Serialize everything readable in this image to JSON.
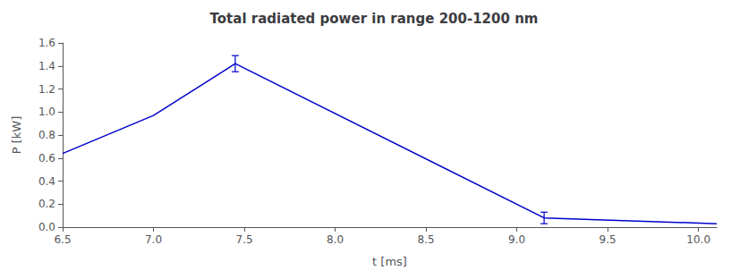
{
  "chart_data": {
    "type": "line",
    "title": "Total radiated power in range 200-1200 nm",
    "xlabel": "t [ms]",
    "ylabel": "P [kW]",
    "x": [
      6.5,
      7.0,
      7.45,
      9.15,
      10.1
    ],
    "y": [
      0.64,
      0.97,
      1.42,
      0.08,
      0.03
    ],
    "yerr": [
      0.0,
      0.0,
      0.07,
      0.05,
      0.0
    ],
    "xlim": [
      6.5,
      10.1
    ],
    "ylim": [
      0.0,
      1.6
    ],
    "xticks": [
      6.5,
      {
        "value": 7.0,
        "label": "7.0"
      },
      7.5,
      {
        "value": 8.0,
        "label": "8.0"
      },
      8.5,
      {
        "value": 9.0,
        "label": "9.0"
      },
      9.5,
      {
        "value": 10.0,
        "label": "10.0"
      }
    ],
    "yticks": [
      {
        "value": 0.0,
        "label": "0.0"
      },
      0.2,
      0.4,
      0.6,
      0.8,
      {
        "value": 1.0,
        "label": "1.0"
      },
      1.2,
      1.4,
      1.6
    ],
    "color": "#0000cc",
    "grid": false
  }
}
